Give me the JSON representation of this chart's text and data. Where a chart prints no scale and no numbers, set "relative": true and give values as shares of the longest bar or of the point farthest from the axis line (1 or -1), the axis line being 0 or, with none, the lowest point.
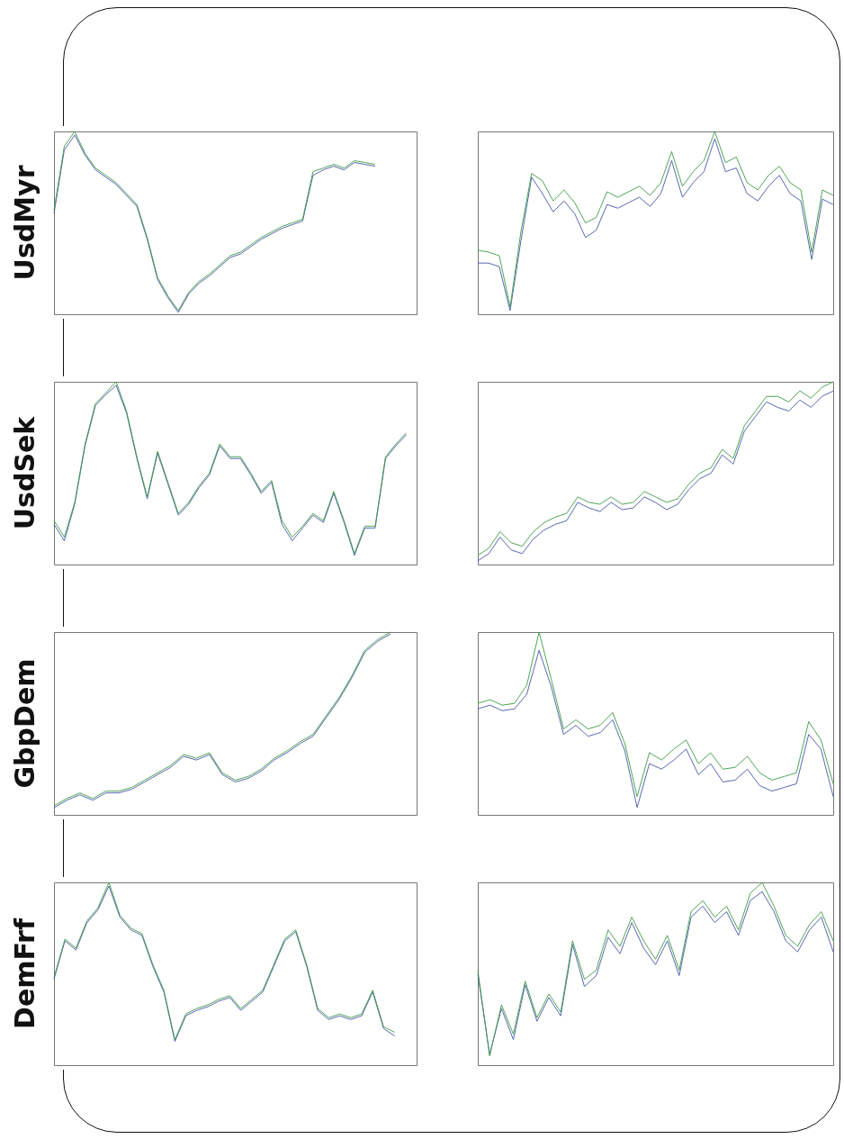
{
  "chart_data": [
    {
      "type": "line",
      "title": "UsdMyr",
      "relative": true,
      "categories": [
        null,
        null,
        null,
        null,
        null,
        null,
        null,
        null,
        null,
        null,
        null,
        null,
        null,
        null,
        null,
        null,
        null,
        null,
        null,
        null,
        null,
        null,
        null,
        null,
        null,
        null,
        null,
        null,
        null,
        null,
        null,
        null,
        null,
        null,
        null,
        null
      ],
      "series": [
        {
          "color": "#4657a6",
          "values": [
            0.55,
            0.9,
            0.98,
            0.87,
            0.79,
            0.75,
            0.71,
            0.65,
            0.59,
            0.41,
            0.19,
            0.09,
            0.01,
            0.11,
            0.17,
            0.21,
            0.26,
            0.31,
            0.33,
            0.37,
            0.41,
            0.44,
            0.47,
            0.49,
            0.51,
            0.76,
            0.79,
            0.81,
            0.79,
            0.83,
            0.82,
            0.81,
            null,
            null,
            null,
            null
          ]
        },
        {
          "color": "#3c9a46",
          "values": [
            0.57,
            0.92,
            1,
            0.88,
            0.8,
            0.76,
            0.72,
            0.66,
            0.6,
            0.42,
            0.2,
            0.1,
            0.02,
            0.12,
            0.18,
            0.22,
            0.27,
            0.32,
            0.34,
            0.38,
            0.42,
            0.45,
            0.48,
            0.5,
            0.52,
            0.78,
            0.8,
            0.82,
            0.8,
            0.84,
            0.83,
            0.82,
            null,
            null,
            null,
            null
          ]
        }
      ]
    },
    {
      "type": "line",
      "relative": true,
      "categories": [
        null,
        null,
        null,
        null,
        null,
        null,
        null,
        null,
        null,
        null,
        null,
        null,
        null,
        null,
        null,
        null,
        null,
        null,
        null,
        null,
        null,
        null,
        null,
        null,
        null,
        null,
        null,
        null,
        null,
        null,
        null,
        null,
        null,
        null
      ],
      "series": [
        {
          "color": "#4657a6",
          "values": [
            0.28,
            0.28,
            0.26,
            0.02,
            0.4,
            0.75,
            0.66,
            0.56,
            0.62,
            0.55,
            0.42,
            0.46,
            0.6,
            0.58,
            0.61,
            0.64,
            0.59,
            0.66,
            0.84,
            0.64,
            0.72,
            0.78,
            0.96,
            0.78,
            0.8,
            0.66,
            0.62,
            0.7,
            0.76,
            0.66,
            0.62,
            0.3,
            0.63,
            0.6
          ]
        },
        {
          "color": "#3c9a46",
          "values": [
            0.35,
            0.34,
            0.32,
            0.04,
            0.45,
            0.77,
            0.73,
            0.62,
            0.68,
            0.61,
            0.5,
            0.53,
            0.67,
            0.64,
            0.67,
            0.7,
            0.65,
            0.72,
            0.89,
            0.7,
            0.78,
            0.84,
            1,
            0.83,
            0.86,
            0.72,
            0.68,
            0.76,
            0.81,
            0.72,
            0.68,
            0.34,
            0.68,
            0.65
          ]
        }
      ]
    },
    {
      "type": "line",
      "title": "UsdSek",
      "relative": true,
      "categories": [
        null,
        null,
        null,
        null,
        null,
        null,
        null,
        null,
        null,
        null,
        null,
        null,
        null,
        null,
        null,
        null,
        null,
        null,
        null,
        null,
        null,
        null,
        null,
        null,
        null,
        null,
        null,
        null,
        null,
        null,
        null,
        null,
        null,
        null,
        null,
        null
      ],
      "series": [
        {
          "color": "#4657a6",
          "values": [
            0.22,
            0.13,
            0.33,
            0.65,
            0.87,
            0.93,
            0.98,
            0.83,
            0.58,
            0.36,
            0.61,
            0.44,
            0.27,
            0.33,
            0.42,
            0.49,
            0.65,
            0.58,
            0.58,
            0.49,
            0.39,
            0.45,
            0.22,
            0.13,
            0.2,
            0.27,
            0.23,
            0.39,
            0.23,
            0.05,
            0.2,
            0.2,
            0.58,
            0.65,
            0.71,
            null
          ]
        },
        {
          "color": "#3c9a46",
          "values": [
            0.24,
            0.15,
            0.34,
            0.66,
            0.88,
            0.94,
            1,
            0.84,
            0.59,
            0.37,
            0.62,
            0.45,
            0.28,
            0.34,
            0.43,
            0.5,
            0.66,
            0.59,
            0.59,
            0.5,
            0.4,
            0.46,
            0.24,
            0.15,
            0.21,
            0.28,
            0.24,
            0.4,
            0.24,
            0.06,
            0.21,
            0.21,
            0.59,
            0.66,
            0.72,
            null
          ]
        }
      ]
    },
    {
      "type": "line",
      "relative": true,
      "categories": [
        null,
        null,
        null,
        null,
        null,
        null,
        null,
        null,
        null,
        null,
        null,
        null,
        null,
        null,
        null,
        null,
        null,
        null,
        null,
        null,
        null,
        null,
        null,
        null,
        null,
        null,
        null,
        null,
        null,
        null,
        null,
        null,
        null
      ],
      "series": [
        {
          "color": "#4657a6",
          "values": [
            0.02,
            0.06,
            0.15,
            0.08,
            0.06,
            0.14,
            0.19,
            0.22,
            0.24,
            0.34,
            0.31,
            0.29,
            0.34,
            0.3,
            0.31,
            0.37,
            0.34,
            0.3,
            0.33,
            0.41,
            0.47,
            0.5,
            0.6,
            0.55,
            0.73,
            0.81,
            0.89,
            0.86,
            0.84,
            0.9,
            0.86,
            0.92,
            0.95
          ]
        },
        {
          "color": "#3c9a46",
          "values": [
            0.05,
            0.09,
            0.18,
            0.12,
            0.1,
            0.18,
            0.23,
            0.26,
            0.28,
            0.37,
            0.34,
            0.33,
            0.37,
            0.33,
            0.34,
            0.4,
            0.37,
            0.34,
            0.36,
            0.44,
            0.5,
            0.53,
            0.63,
            0.58,
            0.76,
            0.84,
            0.92,
            0.92,
            0.89,
            0.95,
            0.91,
            0.97,
            1
          ]
        }
      ]
    },
    {
      "type": "line",
      "title": "GbpDem",
      "relative": true,
      "categories": [
        null,
        null,
        null,
        null,
        null,
        null,
        null,
        null,
        null,
        null,
        null,
        null,
        null,
        null,
        null,
        null,
        null,
        null,
        null,
        null,
        null,
        null,
        null,
        null,
        null,
        null,
        null,
        null,
        null
      ],
      "series": [
        {
          "color": "#4657a6",
          "values": [
            0.04,
            0.08,
            0.11,
            0.08,
            0.12,
            0.12,
            0.14,
            0.18,
            0.22,
            0.26,
            0.32,
            0.3,
            0.33,
            0.22,
            0.18,
            0.2,
            0.24,
            0.3,
            0.34,
            0.39,
            0.43,
            0.53,
            0.63,
            0.75,
            0.89,
            0.95,
            0.99,
            null,
            null
          ]
        },
        {
          "color": "#3c9a46",
          "values": [
            0.05,
            0.09,
            0.12,
            0.09,
            0.13,
            0.13,
            0.15,
            0.19,
            0.23,
            0.27,
            0.33,
            0.31,
            0.34,
            0.23,
            0.19,
            0.21,
            0.25,
            0.31,
            0.35,
            0.4,
            0.44,
            0.54,
            0.64,
            0.76,
            0.9,
            0.96,
            1,
            null,
            null
          ]
        }
      ]
    },
    {
      "type": "line",
      "relative": true,
      "categories": [
        null,
        null,
        null,
        null,
        null,
        null,
        null,
        null,
        null,
        null,
        null,
        null,
        null,
        null,
        null,
        null,
        null,
        null,
        null,
        null,
        null,
        null,
        null,
        null,
        null,
        null,
        null,
        null,
        null,
        null
      ],
      "series": [
        {
          "color": "#4657a6",
          "values": [
            0.58,
            0.6,
            0.57,
            0.58,
            0.66,
            0.9,
            0.7,
            0.44,
            0.49,
            0.43,
            0.45,
            0.52,
            0.35,
            0.04,
            0.28,
            0.25,
            0.3,
            0.36,
            0.22,
            0.28,
            0.18,
            0.19,
            0.25,
            0.16,
            0.13,
            0.15,
            0.17,
            0.44,
            0.36,
            0.1
          ]
        },
        {
          "color": "#3c9a46",
          "values": [
            0.61,
            0.63,
            0.6,
            0.61,
            0.71,
            1,
            0.74,
            0.47,
            0.52,
            0.47,
            0.49,
            0.56,
            0.39,
            0.1,
            0.34,
            0.3,
            0.36,
            0.41,
            0.28,
            0.34,
            0.25,
            0.26,
            0.32,
            0.23,
            0.19,
            0.21,
            0.23,
            0.51,
            0.41,
            0.17
          ]
        }
      ]
    },
    {
      "type": "line",
      "title": "DemFrf",
      "relative": true,
      "categories": [
        null,
        null,
        null,
        null,
        null,
        null,
        null,
        null,
        null,
        null,
        null,
        null,
        null,
        null,
        null,
        null,
        null,
        null,
        null,
        null,
        null,
        null,
        null,
        null,
        null,
        null,
        null,
        null,
        null,
        null,
        null,
        null,
        null,
        null
      ],
      "series": [
        {
          "color": "#4657a6",
          "values": [
            0.47,
            0.68,
            0.63,
            0.78,
            0.85,
            0.98,
            0.81,
            0.74,
            0.71,
            0.54,
            0.4,
            0.13,
            0.27,
            0.3,
            0.32,
            0.35,
            0.37,
            0.3,
            0.35,
            0.4,
            0.54,
            0.68,
            0.73,
            0.54,
            0.3,
            0.25,
            0.27,
            0.25,
            0.27,
            0.4,
            0.2,
            0.16,
            null,
            null
          ]
        },
        {
          "color": "#3c9a46",
          "values": [
            0.48,
            0.69,
            0.64,
            0.79,
            0.86,
            1,
            0.82,
            0.75,
            0.72,
            0.55,
            0.41,
            0.14,
            0.28,
            0.31,
            0.33,
            0.36,
            0.38,
            0.31,
            0.36,
            0.41,
            0.55,
            0.69,
            0.74,
            0.55,
            0.31,
            0.26,
            0.28,
            0.26,
            0.28,
            0.41,
            0.21,
            0.18,
            null,
            null
          ]
        }
      ]
    },
    {
      "type": "line",
      "relative": true,
      "categories": [
        null,
        null,
        null,
        null,
        null,
        null,
        null,
        null,
        null,
        null,
        null,
        null,
        null,
        null,
        null,
        null,
        null,
        null,
        null,
        null,
        null,
        null,
        null,
        null,
        null,
        null,
        null,
        null,
        null,
        null,
        null
      ],
      "series": [
        {
          "color": "#4657a6",
          "values": [
            0.5,
            0.06,
            0.31,
            0.14,
            0.44,
            0.24,
            0.37,
            0.27,
            0.66,
            0.43,
            0.49,
            0.7,
            0.61,
            0.78,
            0.64,
            0.55,
            0.68,
            0.49,
            0.81,
            0.87,
            0.78,
            0.84,
            0.71,
            0.9,
            0.95,
            0.84,
            0.68,
            0.62,
            0.74,
            0.81,
            0.62
          ]
        },
        {
          "color": "#3c9a46",
          "values": [
            0.52,
            0.05,
            0.33,
            0.17,
            0.46,
            0.26,
            0.39,
            0.29,
            0.68,
            0.47,
            0.52,
            0.74,
            0.65,
            0.81,
            0.68,
            0.58,
            0.71,
            0.52,
            0.84,
            0.9,
            0.81,
            0.87,
            0.74,
            0.94,
            1,
            0.87,
            0.71,
            0.65,
            0.77,
            0.84,
            0.68
          ]
        }
      ]
    }
  ]
}
